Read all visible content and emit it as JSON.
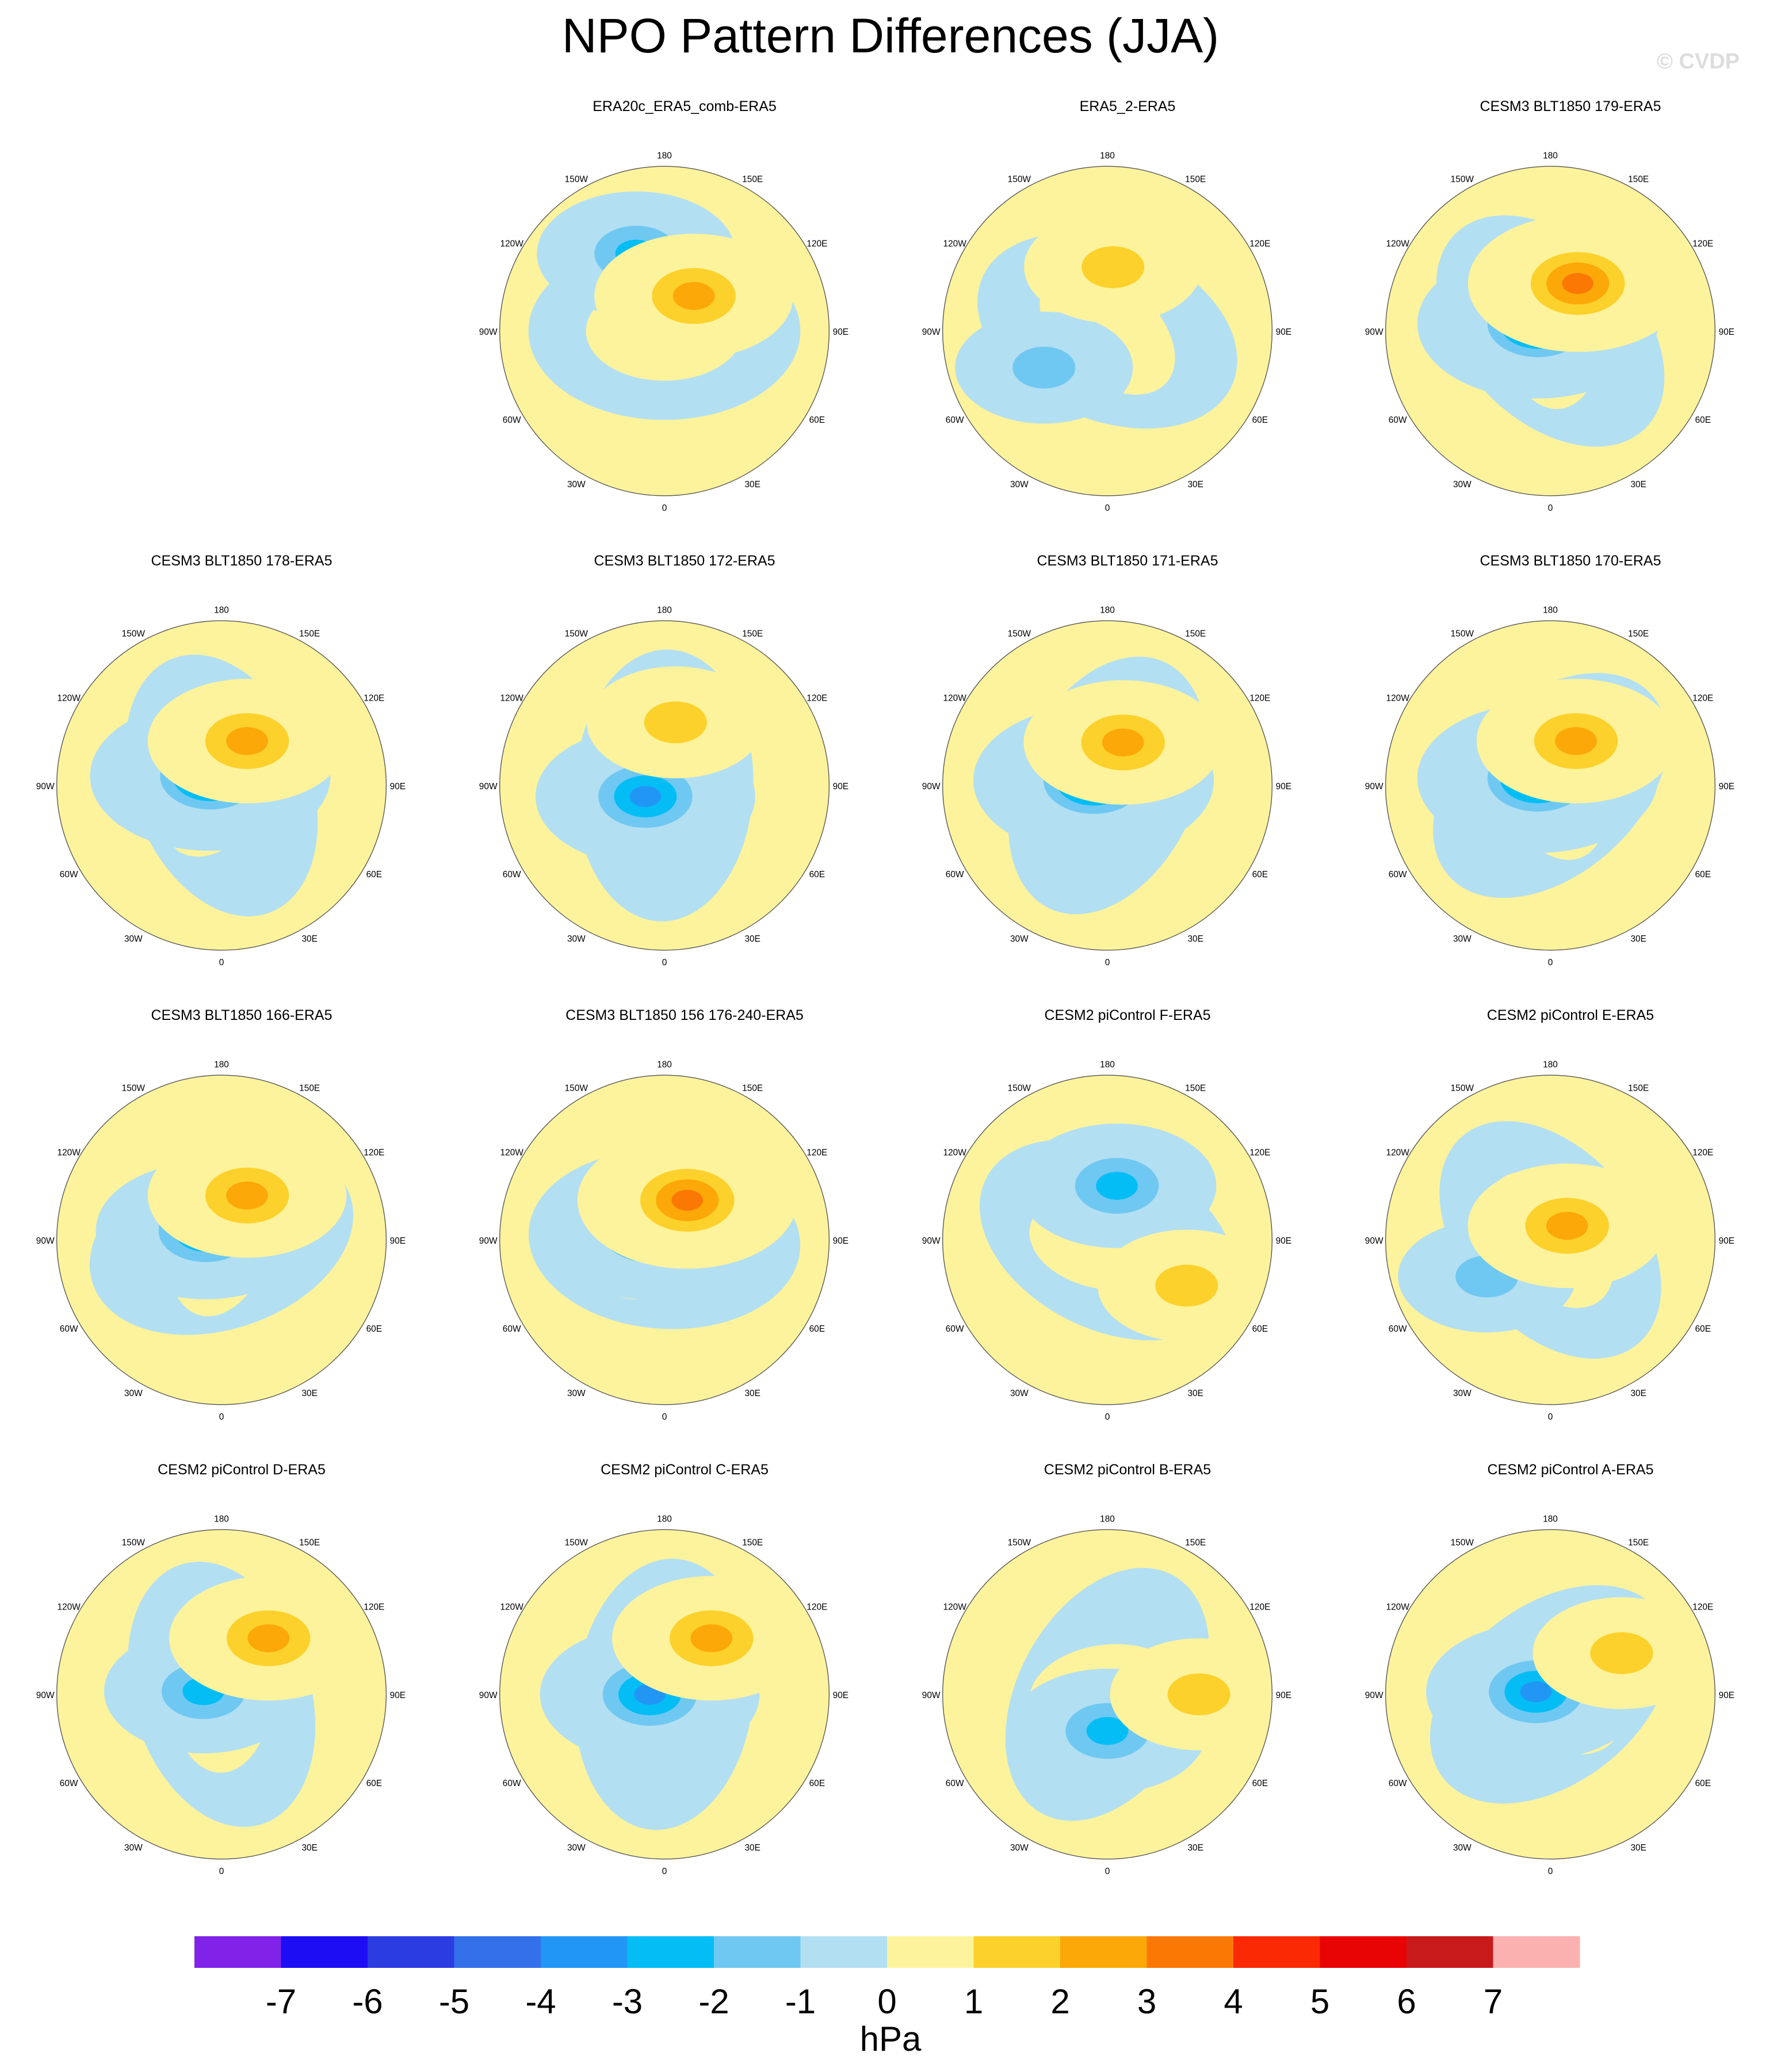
{
  "title": "NPO Pattern Differences (JJA)",
  "watermark": "© CVDP",
  "chart_data": {
    "type": "heatmap",
    "projection": "north-polar-stereographic",
    "season": "JJA",
    "units": "hPa",
    "longitude_labels": [
      "180",
      "150E",
      "120E",
      "90E",
      "60E",
      "30E",
      "0",
      "30W",
      "60W",
      "90W",
      "120W",
      "150W"
    ],
    "colorbar": {
      "ticks": [
        "-7",
        "-6",
        "-5",
        "-4",
        "-3",
        "-2",
        "-1",
        "0",
        "1",
        "2",
        "3",
        "4",
        "5",
        "6",
        "7"
      ],
      "label": "hPa",
      "colors": [
        "#8122e8",
        "#1c0df5",
        "#2b3ce0",
        "#3370ea",
        "#2196f5",
        "#05bdf5",
        "#6fc8f2",
        "#b3dff2",
        "#fdf39c",
        "#fdd12c",
        "#fca808",
        "#fb7805",
        "#fb2a05",
        "#e80305",
        "#c81a1a",
        "#fcb1b1"
      ]
    },
    "panels": [
      {
        "title": "ERA20c_ERA5_comb-ERA5",
        "positive_center": {
          "lat": 65,
          "lon": 140
        },
        "negative_center": {
          "lat": 45,
          "lon": -160
        },
        "peak_positive_hPa": 1.5,
        "peak_negative_hPa": -1.5
      },
      {
        "title": "ERA5_2-ERA5",
        "positive_center": {
          "lat": 55,
          "lon": 175
        },
        "negative_center": {
          "lat": 50,
          "lon": -60
        },
        "peak_positive_hPa": 0.5,
        "peak_negative_hPa": -0.5
      },
      {
        "title": "CESM3 BLT1850 179-ERA5",
        "positive_center": {
          "lat": 60,
          "lon": 150
        },
        "negative_center": {
          "lat": 82,
          "lon": -120
        },
        "peak_positive_hPa": 2.5,
        "peak_negative_hPa": -4.0
      },
      {
        "title": "CESM3 BLT1850 178-ERA5",
        "positive_center": {
          "lat": 62,
          "lon": 150
        },
        "negative_center": {
          "lat": 82,
          "lon": -130
        },
        "peak_positive_hPa": 1.5,
        "peak_negative_hPa": -3.5
      },
      {
        "title": "CESM3 BLT1850 172-ERA5",
        "positive_center": {
          "lat": 55,
          "lon": 170
        },
        "negative_center": {
          "lat": 78,
          "lon": -60
        },
        "peak_positive_hPa": 0.5,
        "peak_negative_hPa": -3.0
      },
      {
        "title": "CESM3 BLT1850 171-ERA5",
        "positive_center": {
          "lat": 65,
          "lon": 160
        },
        "negative_center": {
          "lat": 82,
          "lon": -110
        },
        "peak_positive_hPa": 2.0,
        "peak_negative_hPa": -3.5
      },
      {
        "title": "CESM3 BLT1850 170-ERA5",
        "positive_center": {
          "lat": 62,
          "lon": 150
        },
        "negative_center": {
          "lat": 82,
          "lon": -120
        },
        "peak_positive_hPa": 1.5,
        "peak_negative_hPa": -4.0
      },
      {
        "title": "CESM3 BLT1850 166-ERA5",
        "positive_center": {
          "lat": 62,
          "lon": 150
        },
        "negative_center": {
          "lat": 80,
          "lon": -120
        },
        "peak_positive_hPa": 1.5,
        "peak_negative_hPa": -3.0
      },
      {
        "title": "CESM3 BLT1850 156 176-240-ERA5",
        "positive_center": {
          "lat": 65,
          "lon": 150
        },
        "negative_center": {
          "lat": 80,
          "lon": -120
        },
        "peak_positive_hPa": 3.0,
        "peak_negative_hPa": -3.0
      },
      {
        "title": "CESM2 piControl F-ERA5",
        "positive_center": {
          "lat": 40,
          "lon": 60
        },
        "negative_center": {
          "lat": 60,
          "lon": 170
        },
        "peak_positive_hPa": 0.5,
        "peak_negative_hPa": -1.5
      },
      {
        "title": "CESM2 piControl E-ERA5",
        "positive_center": {
          "lat": 78,
          "lon": 130
        },
        "negative_center": {
          "lat": 50,
          "lon": -60
        },
        "peak_positive_hPa": 1.5,
        "peak_negative_hPa": -0.5
      },
      {
        "title": "CESM2 piControl D-ERA5",
        "positive_center": {
          "lat": 50,
          "lon": 140
        },
        "negative_center": {
          "lat": 80,
          "lon": -100
        },
        "peak_positive_hPa": 1.5,
        "peak_negative_hPa": -1.5
      },
      {
        "title": "CESM2 piControl C-ERA5",
        "positive_center": {
          "lat": 50,
          "lon": 140
        },
        "negative_center": {
          "lat": 82,
          "lon": -90
        },
        "peak_positive_hPa": 1.5,
        "peak_negative_hPa": -2.5
      },
      {
        "title": "CESM2 piControl B-ERA5",
        "positive_center": {
          "lat": 40,
          "lon": 90
        },
        "negative_center": {
          "lat": 70,
          "lon": 0
        },
        "peak_positive_hPa": 0.5,
        "peak_negative_hPa": -1.5
      },
      {
        "title": "CESM2 piControl A-ERA5",
        "positive_center": {
          "lat": 45,
          "lon": 120
        },
        "negative_center": {
          "lat": 82,
          "lon": -100
        },
        "peak_positive_hPa": 1.0,
        "peak_negative_hPa": -2.5
      }
    ]
  }
}
